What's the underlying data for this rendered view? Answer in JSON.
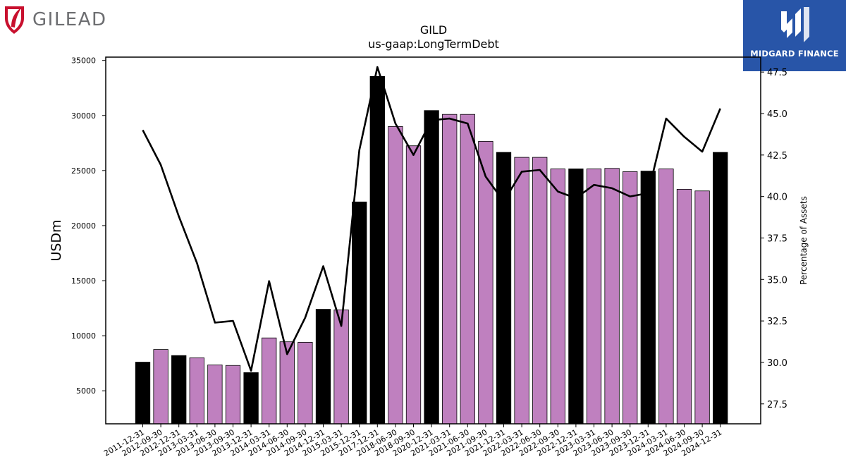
{
  "company_logo": {
    "text": "GILEAD",
    "icon": "gilead-leaf-icon",
    "color": "#6d6e71",
    "icon_color": "#c8102e"
  },
  "brand_logo": {
    "text": "MIDGARD FINANCE",
    "icon": "midgard-m-icon",
    "background": "#2855a8"
  },
  "chart_data": {
    "type": "bar",
    "title": "GILD",
    "subtitle": "us-gaap:LongTermDebt",
    "ylabel": "USDm",
    "ylabel_right": "Percentage of Assets",
    "ylim": [
      2000,
      35300
    ],
    "ylim_right": [
      26.3,
      48.4
    ],
    "yticks": [
      5000,
      10000,
      15000,
      20000,
      25000,
      30000,
      35000
    ],
    "yticks_right": [
      "27.5",
      "30.0",
      "32.5",
      "35.0",
      "37.5",
      "40.0",
      "42.5",
      "45.0",
      "47.5"
    ],
    "categories": [
      "2011-12-31",
      "2012-09-30",
      "2012-12-31",
      "2013-03-31",
      "2013-06-30",
      "2013-09-30",
      "2013-12-31",
      "2014-03-31",
      "2014-06-30",
      "2014-09-30",
      "2014-12-31",
      "2015-03-31",
      "2015-12-31",
      "2017-12-31",
      "2018-06-30",
      "2018-09-30",
      "2020-12-31",
      "2021-03-31",
      "2021-06-30",
      "2021-09-30",
      "2021-12-31",
      "2022-03-31",
      "2022-06-30",
      "2022-09-30",
      "2022-12-31",
      "2023-03-31",
      "2023-06-30",
      "2023-09-30",
      "2023-12-31",
      "2024-03-31",
      "2024-06-30",
      "2024-09-30",
      "2024-12-31"
    ],
    "series": [
      {
        "kind": "bar",
        "values": [
          7600,
          8750,
          8200,
          8000,
          7350,
          7300,
          6650,
          9800,
          9450,
          9400,
          12400,
          12350,
          22150,
          33550,
          29000,
          27250,
          30450,
          30100,
          30100,
          27650,
          26650,
          26200,
          26200,
          25150,
          25150,
          25150,
          25200,
          24900,
          24950,
          25150,
          23300,
          23150,
          26650
        ],
        "year_end": [
          true,
          false,
          true,
          false,
          false,
          false,
          true,
          false,
          false,
          false,
          true,
          false,
          true,
          true,
          false,
          false,
          true,
          false,
          false,
          false,
          true,
          false,
          false,
          false,
          true,
          false,
          false,
          false,
          true,
          false,
          false,
          false,
          true
        ]
      },
      {
        "kind": "line",
        "axis": "right",
        "values": [
          44.0,
          41.9,
          38.8,
          36.0,
          32.4,
          32.5,
          29.5,
          34.9,
          30.5,
          32.7,
          35.8,
          32.2,
          42.8,
          47.8,
          44.4,
          42.5,
          44.6,
          44.7,
          44.4,
          41.2,
          39.7,
          41.5,
          41.6,
          40.3,
          39.9,
          40.7,
          40.5,
          40.0,
          40.2,
          44.7,
          43.6,
          42.7,
          45.3
        ]
      }
    ],
    "colors": {
      "bar_year_end": "#000000",
      "bar_other": "#bf80bf",
      "line": "#000000"
    }
  }
}
